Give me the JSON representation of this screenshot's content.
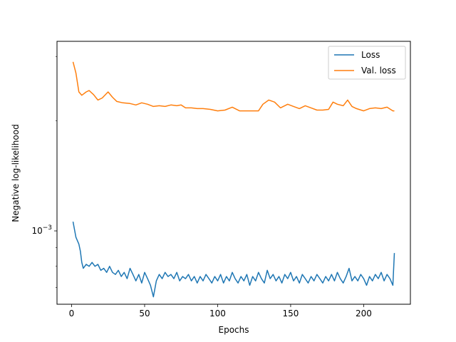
{
  "chart_data": {
    "type": "line",
    "title": "",
    "xlabel": "Epochs",
    "ylabel": "Negative log-likelihood",
    "xlim": [
      -10,
      232
    ],
    "ylim": [
      0.00063,
      0.0033
    ],
    "yscale": "log",
    "x_ticks": [
      0,
      50,
      100,
      150,
      200
    ],
    "y_major_tick": {
      "value": 0.001,
      "label_base": "10",
      "label_exp": "−3"
    },
    "legend": {
      "position": "top-right"
    },
    "grid": false,
    "series": [
      {
        "name": "Loss",
        "color": "#1f77b4",
        "points": [
          [
            1,
            0.00106
          ],
          [
            3,
            0.00096
          ],
          [
            5,
            0.00092
          ],
          [
            6,
            0.00088
          ],
          [
            7,
            0.00082
          ],
          [
            8,
            0.00079
          ],
          [
            10,
            0.00081
          ],
          [
            12,
            0.0008
          ],
          [
            14,
            0.00082
          ],
          [
            16,
            0.0008
          ],
          [
            18,
            0.00081
          ],
          [
            20,
            0.00078
          ],
          [
            22,
            0.00079
          ],
          [
            24,
            0.00077
          ],
          [
            26,
            0.0008
          ],
          [
            28,
            0.00077
          ],
          [
            30,
            0.00076
          ],
          [
            32,
            0.00078
          ],
          [
            34,
            0.00075
          ],
          [
            36,
            0.00077
          ],
          [
            38,
            0.00074
          ],
          [
            40,
            0.00079
          ],
          [
            42,
            0.00076
          ],
          [
            44,
            0.00073
          ],
          [
            46,
            0.00076
          ],
          [
            48,
            0.00072
          ],
          [
            50,
            0.00077
          ],
          [
            52,
            0.00074
          ],
          [
            54,
            0.00071
          ],
          [
            56,
            0.00066
          ],
          [
            58,
            0.00073
          ],
          [
            60,
            0.00076
          ],
          [
            62,
            0.00074
          ],
          [
            64,
            0.00077
          ],
          [
            66,
            0.00075
          ],
          [
            68,
            0.00076
          ],
          [
            70,
            0.00074
          ],
          [
            72,
            0.00077
          ],
          [
            74,
            0.00073
          ],
          [
            76,
            0.00075
          ],
          [
            78,
            0.00074
          ],
          [
            80,
            0.00076
          ],
          [
            82,
            0.00073
          ],
          [
            84,
            0.00075
          ],
          [
            86,
            0.00072
          ],
          [
            88,
            0.00075
          ],
          [
            90,
            0.00073
          ],
          [
            92,
            0.00076
          ],
          [
            94,
            0.00074
          ],
          [
            96,
            0.00072
          ],
          [
            98,
            0.00075
          ],
          [
            100,
            0.00073
          ],
          [
            102,
            0.00076
          ],
          [
            104,
            0.00072
          ],
          [
            106,
            0.00075
          ],
          [
            108,
            0.00073
          ],
          [
            110,
            0.00077
          ],
          [
            112,
            0.00074
          ],
          [
            114,
            0.00072
          ],
          [
            116,
            0.00075
          ],
          [
            118,
            0.00073
          ],
          [
            120,
            0.00076
          ],
          [
            122,
            0.00071
          ],
          [
            124,
            0.00075
          ],
          [
            126,
            0.00073
          ],
          [
            128,
            0.00077
          ],
          [
            130,
            0.00074
          ],
          [
            132,
            0.00072
          ],
          [
            134,
            0.00078
          ],
          [
            136,
            0.00074
          ],
          [
            138,
            0.00076
          ],
          [
            140,
            0.00073
          ],
          [
            142,
            0.00075
          ],
          [
            144,
            0.00072
          ],
          [
            146,
            0.00076
          ],
          [
            148,
            0.00074
          ],
          [
            150,
            0.00077
          ],
          [
            152,
            0.00073
          ],
          [
            154,
            0.00075
          ],
          [
            156,
            0.00072
          ],
          [
            158,
            0.00076
          ],
          [
            160,
            0.00074
          ],
          [
            162,
            0.00072
          ],
          [
            164,
            0.00075
          ],
          [
            166,
            0.00073
          ],
          [
            168,
            0.00076
          ],
          [
            170,
            0.00074
          ],
          [
            172,
            0.00072
          ],
          [
            174,
            0.00075
          ],
          [
            176,
            0.00073
          ],
          [
            178,
            0.00076
          ],
          [
            180,
            0.00073
          ],
          [
            182,
            0.00077
          ],
          [
            184,
            0.00074
          ],
          [
            186,
            0.00072
          ],
          [
            188,
            0.00075
          ],
          [
            190,
            0.00079
          ],
          [
            192,
            0.00073
          ],
          [
            194,
            0.00075
          ],
          [
            196,
            0.00073
          ],
          [
            198,
            0.00076
          ],
          [
            200,
            0.00074
          ],
          [
            202,
            0.00071
          ],
          [
            204,
            0.00075
          ],
          [
            206,
            0.00073
          ],
          [
            208,
            0.00076
          ],
          [
            210,
            0.00074
          ],
          [
            212,
            0.00077
          ],
          [
            214,
            0.00073
          ],
          [
            216,
            0.00076
          ],
          [
            218,
            0.00074
          ],
          [
            220,
            0.00071
          ],
          [
            221,
            0.00087
          ]
        ]
      },
      {
        "name": "Val. loss",
        "color": "#ff7f0e",
        "points": [
          [
            1,
            0.0029
          ],
          [
            3,
            0.0027
          ],
          [
            5,
            0.0024
          ],
          [
            7,
            0.00235
          ],
          [
            10,
            0.0024
          ],
          [
            12,
            0.00242
          ],
          [
            15,
            0.00236
          ],
          [
            18,
            0.00228
          ],
          [
            21,
            0.00231
          ],
          [
            25,
            0.0024
          ],
          [
            28,
            0.00232
          ],
          [
            31,
            0.00226
          ],
          [
            35,
            0.00224
          ],
          [
            40,
            0.00223
          ],
          [
            44,
            0.00221
          ],
          [
            48,
            0.00224
          ],
          [
            52,
            0.00222
          ],
          [
            56,
            0.00219
          ],
          [
            60,
            0.0022
          ],
          [
            64,
            0.00219
          ],
          [
            68,
            0.00221
          ],
          [
            72,
            0.0022
          ],
          [
            75,
            0.00221
          ],
          [
            78,
            0.00217
          ],
          [
            82,
            0.00217
          ],
          [
            86,
            0.00216
          ],
          [
            90,
            0.00216
          ],
          [
            95,
            0.00215
          ],
          [
            100,
            0.00213
          ],
          [
            105,
            0.00214
          ],
          [
            110,
            0.00218
          ],
          [
            115,
            0.00213
          ],
          [
            120,
            0.00213
          ],
          [
            128,
            0.00213
          ],
          [
            131,
            0.00222
          ],
          [
            135,
            0.00228
          ],
          [
            139,
            0.00225
          ],
          [
            143,
            0.00217
          ],
          [
            148,
            0.00222
          ],
          [
            152,
            0.00219
          ],
          [
            156,
            0.00216
          ],
          [
            160,
            0.0022
          ],
          [
            164,
            0.00217
          ],
          [
            168,
            0.00214
          ],
          [
            172,
            0.00214
          ],
          [
            176,
            0.00215
          ],
          [
            179,
            0.00225
          ],
          [
            182,
            0.00222
          ],
          [
            186,
            0.0022
          ],
          [
            189,
            0.00228
          ],
          [
            192,
            0.00219
          ],
          [
            195,
            0.00216
          ],
          [
            200,
            0.00213
          ],
          [
            204,
            0.00216
          ],
          [
            208,
            0.00217
          ],
          [
            212,
            0.00216
          ],
          [
            216,
            0.00218
          ],
          [
            220,
            0.00213
          ],
          [
            221,
            0.00213
          ]
        ]
      }
    ]
  }
}
